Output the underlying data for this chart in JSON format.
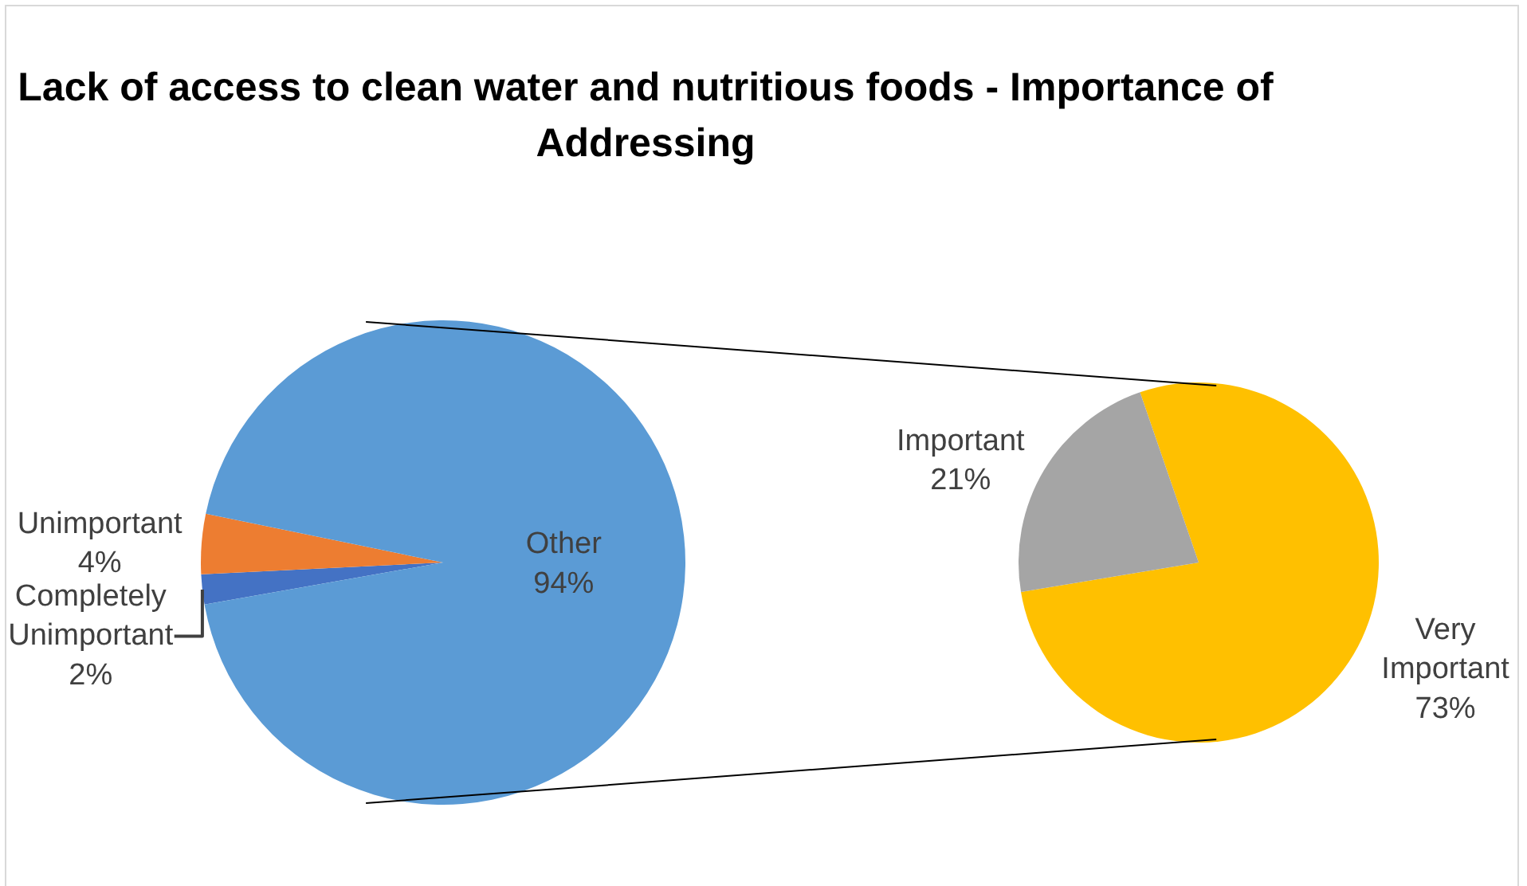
{
  "chart_data": [
    {
      "type": "pie",
      "title": "Lack of access to clean water and nutritious foods - Importance of Addressing",
      "categories": [
        "Completely Unimportant",
        "Unimportant",
        "Other"
      ],
      "values": [
        2,
        4,
        94
      ],
      "value_labels": [
        "2%",
        "4%",
        "94%"
      ],
      "colors": [
        "#4472c4",
        "#ed7d31",
        "#5b9bd5"
      ],
      "legend": false
    },
    {
      "type": "pie",
      "categories": [
        "Very Important",
        "Important"
      ],
      "values": [
        73,
        21
      ],
      "value_labels": [
        "73%",
        "21%"
      ],
      "colors": [
        "#ffc000",
        "#a5a5a5"
      ],
      "legend": false
    }
  ]
}
